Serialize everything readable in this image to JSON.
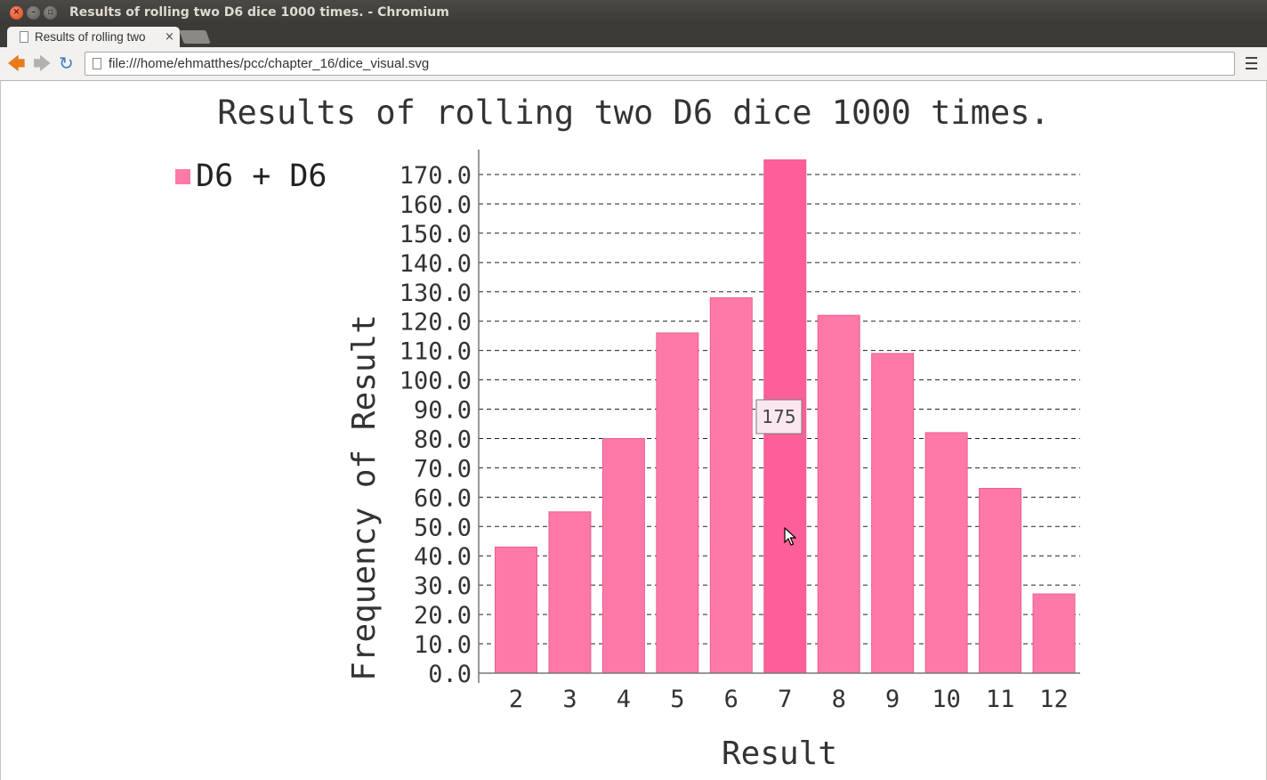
{
  "window": {
    "title": "Results of rolling two D6 dice 1000 times. - Chromium"
  },
  "tab": {
    "label": "Results of rolling two",
    "close": "×"
  },
  "toolbar": {
    "url": "file:///home/ehmatthes/pcc/chapter_16/dice_visual.svg"
  },
  "colors": {
    "bar": "#ff79a8",
    "bar_highlight": "#ff5f99",
    "bar_stroke": "#e8608f",
    "legend_swatch": "#ff7aa8"
  },
  "tooltip": {
    "value": "175"
  },
  "chart_data": {
    "type": "bar",
    "title": "Results of rolling two D6 dice 1000 times.",
    "xlabel": "Result",
    "ylabel": "Frequency of Result",
    "categories": [
      "2",
      "3",
      "4",
      "5",
      "6",
      "7",
      "8",
      "9",
      "10",
      "11",
      "12"
    ],
    "series": [
      {
        "name": "D6 + D6",
        "values": [
          43,
          55,
          80,
          116,
          128,
          175,
          122,
          109,
          82,
          63,
          27
        ]
      }
    ],
    "yticks": [
      "0.0",
      "10.0",
      "20.0",
      "30.0",
      "40.0",
      "50.0",
      "60.0",
      "70.0",
      "80.0",
      "90.0",
      "100.0",
      "110.0",
      "120.0",
      "130.0",
      "140.0",
      "150.0",
      "160.0",
      "170.0"
    ],
    "ylim": [
      0,
      170
    ],
    "grid": true,
    "legend_position": "top-left",
    "highlighted_category": "7"
  }
}
